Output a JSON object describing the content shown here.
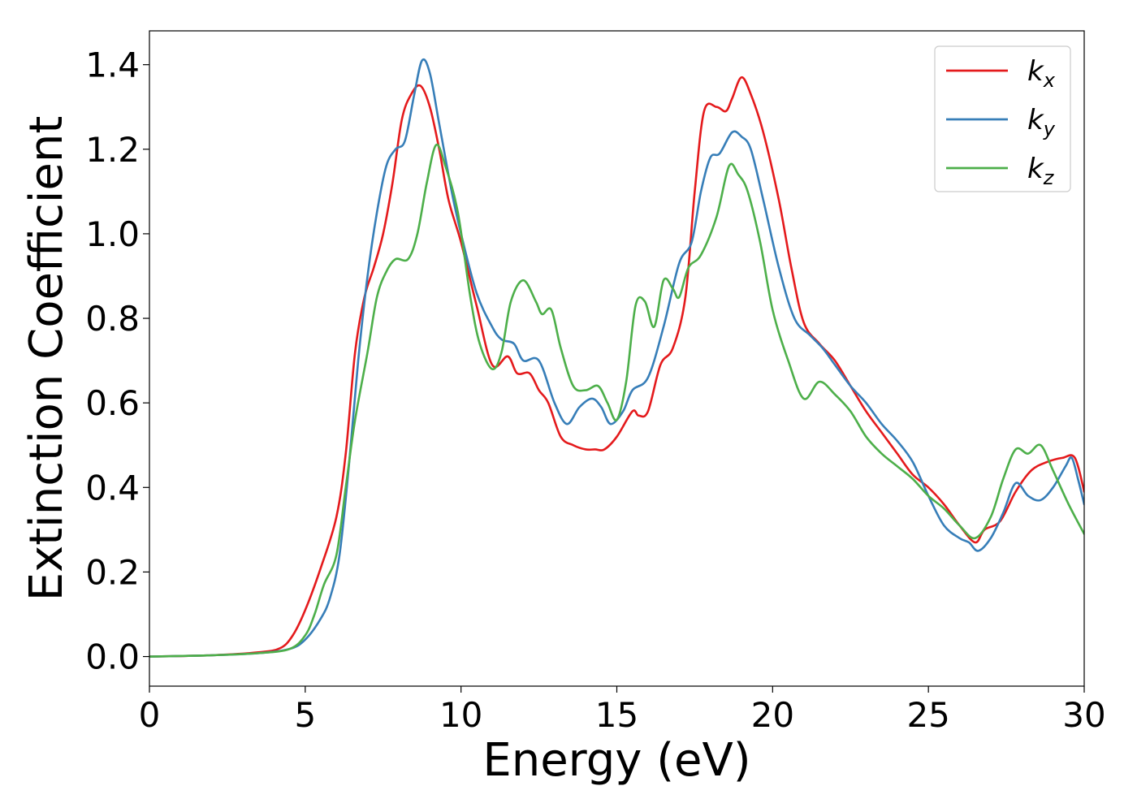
{
  "chart_data": {
    "type": "line",
    "title": "",
    "xlabel": "Energy (eV)",
    "ylabel": "Extinction Coefficient",
    "xlim": [
      0,
      30
    ],
    "ylim": [
      -0.07,
      1.48
    ],
    "xticks": [
      0,
      5,
      10,
      15,
      20,
      25,
      30
    ],
    "yticks": [
      0.0,
      0.2,
      0.4,
      0.6,
      0.8,
      1.0,
      1.2,
      1.4
    ],
    "xtick_labels": [
      "0",
      "5",
      "10",
      "15",
      "20",
      "25",
      "30"
    ],
    "ytick_labels": [
      "0.0",
      "0.2",
      "0.4",
      "0.6",
      "0.8",
      "1.0",
      "1.2",
      "1.4"
    ],
    "grid": false,
    "legend_position": "top-right",
    "series": [
      {
        "name": "k",
        "subscript": "x",
        "color": "#e41a1c",
        "points": [
          [
            0,
            0
          ],
          [
            2,
            0.003
          ],
          [
            3.5,
            0.01
          ],
          [
            4.2,
            0.02
          ],
          [
            4.6,
            0.05
          ],
          [
            5.0,
            0.11
          ],
          [
            5.5,
            0.21
          ],
          [
            6.0,
            0.33
          ],
          [
            6.3,
            0.48
          ],
          [
            6.6,
            0.72
          ],
          [
            6.9,
            0.85
          ],
          [
            7.2,
            0.92
          ],
          [
            7.5,
            1.0
          ],
          [
            7.8,
            1.12
          ],
          [
            8.1,
            1.27
          ],
          [
            8.4,
            1.33
          ],
          [
            8.7,
            1.35
          ],
          [
            9.0,
            1.3
          ],
          [
            9.3,
            1.2
          ],
          [
            9.6,
            1.08
          ],
          [
            10.0,
            0.98
          ],
          [
            10.5,
            0.83
          ],
          [
            11.0,
            0.69
          ],
          [
            11.5,
            0.71
          ],
          [
            11.8,
            0.67
          ],
          [
            12.2,
            0.67
          ],
          [
            12.5,
            0.63
          ],
          [
            12.8,
            0.6
          ],
          [
            13.2,
            0.52
          ],
          [
            13.6,
            0.5
          ],
          [
            14.0,
            0.49
          ],
          [
            14.3,
            0.49
          ],
          [
            14.6,
            0.49
          ],
          [
            15.0,
            0.52
          ],
          [
            15.5,
            0.58
          ],
          [
            15.7,
            0.57
          ],
          [
            16.0,
            0.58
          ],
          [
            16.4,
            0.69
          ],
          [
            16.8,
            0.73
          ],
          [
            17.2,
            0.85
          ],
          [
            17.5,
            1.1
          ],
          [
            17.8,
            1.29
          ],
          [
            18.2,
            1.3
          ],
          [
            18.5,
            1.29
          ],
          [
            18.7,
            1.32
          ],
          [
            19.0,
            1.37
          ],
          [
            19.3,
            1.33
          ],
          [
            19.7,
            1.24
          ],
          [
            20.2,
            1.08
          ],
          [
            20.6,
            0.92
          ],
          [
            21.0,
            0.79
          ],
          [
            21.5,
            0.74
          ],
          [
            22.0,
            0.7
          ],
          [
            22.5,
            0.64
          ],
          [
            23.0,
            0.58
          ],
          [
            23.5,
            0.53
          ],
          [
            24.0,
            0.48
          ],
          [
            24.5,
            0.43
          ],
          [
            25.0,
            0.4
          ],
          [
            25.5,
            0.36
          ],
          [
            26.0,
            0.31
          ],
          [
            26.5,
            0.27
          ],
          [
            26.8,
            0.3
          ],
          [
            27.3,
            0.32
          ],
          [
            27.8,
            0.39
          ],
          [
            28.3,
            0.44
          ],
          [
            28.8,
            0.46
          ],
          [
            29.3,
            0.47
          ],
          [
            29.7,
            0.47
          ],
          [
            30.0,
            0.39
          ]
        ]
      },
      {
        "name": "k",
        "subscript": "y",
        "color": "#377eb8",
        "points": [
          [
            0,
            0
          ],
          [
            2,
            0.003
          ],
          [
            3.5,
            0.008
          ],
          [
            4.5,
            0.018
          ],
          [
            5.0,
            0.04
          ],
          [
            5.5,
            0.09
          ],
          [
            5.8,
            0.14
          ],
          [
            6.1,
            0.24
          ],
          [
            6.4,
            0.45
          ],
          [
            6.7,
            0.7
          ],
          [
            7.0,
            0.9
          ],
          [
            7.3,
            1.05
          ],
          [
            7.6,
            1.16
          ],
          [
            7.9,
            1.2
          ],
          [
            8.2,
            1.22
          ],
          [
            8.5,
            1.33
          ],
          [
            8.75,
            1.41
          ],
          [
            9.0,
            1.38
          ],
          [
            9.3,
            1.26
          ],
          [
            9.7,
            1.1
          ],
          [
            10.0,
            1.0
          ],
          [
            10.5,
            0.86
          ],
          [
            11.0,
            0.78
          ],
          [
            11.3,
            0.75
          ],
          [
            11.7,
            0.74
          ],
          [
            12.0,
            0.7
          ],
          [
            12.5,
            0.7
          ],
          [
            13.0,
            0.6
          ],
          [
            13.4,
            0.55
          ],
          [
            13.8,
            0.59
          ],
          [
            14.2,
            0.61
          ],
          [
            14.5,
            0.59
          ],
          [
            14.8,
            0.55
          ],
          [
            15.2,
            0.58
          ],
          [
            15.5,
            0.63
          ],
          [
            16.0,
            0.66
          ],
          [
            16.5,
            0.78
          ],
          [
            17.0,
            0.93
          ],
          [
            17.4,
            0.98
          ],
          [
            17.7,
            1.1
          ],
          [
            18.0,
            1.18
          ],
          [
            18.3,
            1.19
          ],
          [
            18.7,
            1.24
          ],
          [
            19.0,
            1.23
          ],
          [
            19.3,
            1.2
          ],
          [
            19.7,
            1.08
          ],
          [
            20.2,
            0.92
          ],
          [
            20.7,
            0.8
          ],
          [
            21.2,
            0.76
          ],
          [
            21.6,
            0.73
          ],
          [
            22.0,
            0.69
          ],
          [
            22.5,
            0.64
          ],
          [
            23.0,
            0.6
          ],
          [
            23.5,
            0.55
          ],
          [
            24.0,
            0.51
          ],
          [
            24.5,
            0.46
          ],
          [
            25.0,
            0.38
          ],
          [
            25.5,
            0.31
          ],
          [
            26.0,
            0.28
          ],
          [
            26.3,
            0.27
          ],
          [
            26.6,
            0.25
          ],
          [
            27.0,
            0.28
          ],
          [
            27.4,
            0.34
          ],
          [
            27.8,
            0.41
          ],
          [
            28.2,
            0.38
          ],
          [
            28.6,
            0.37
          ],
          [
            29.0,
            0.4
          ],
          [
            29.4,
            0.45
          ],
          [
            29.6,
            0.47
          ],
          [
            29.8,
            0.42
          ],
          [
            30.0,
            0.36
          ]
        ]
      },
      {
        "name": "k",
        "subscript": "z",
        "color": "#4daf4a",
        "points": [
          [
            0,
            0
          ],
          [
            2,
            0.003
          ],
          [
            3.5,
            0.008
          ],
          [
            4.5,
            0.018
          ],
          [
            5.0,
            0.05
          ],
          [
            5.3,
            0.1
          ],
          [
            5.6,
            0.17
          ],
          [
            6.0,
            0.24
          ],
          [
            6.3,
            0.4
          ],
          [
            6.6,
            0.56
          ],
          [
            7.0,
            0.72
          ],
          [
            7.3,
            0.85
          ],
          [
            7.6,
            0.91
          ],
          [
            7.9,
            0.94
          ],
          [
            8.3,
            0.94
          ],
          [
            8.6,
            1.0
          ],
          [
            8.9,
            1.12
          ],
          [
            9.2,
            1.21
          ],
          [
            9.5,
            1.16
          ],
          [
            9.9,
            1.05
          ],
          [
            10.3,
            0.85
          ],
          [
            10.6,
            0.74
          ],
          [
            11.0,
            0.68
          ],
          [
            11.3,
            0.72
          ],
          [
            11.6,
            0.84
          ],
          [
            12.0,
            0.89
          ],
          [
            12.4,
            0.84
          ],
          [
            12.6,
            0.81
          ],
          [
            12.9,
            0.82
          ],
          [
            13.2,
            0.73
          ],
          [
            13.6,
            0.64
          ],
          [
            14.0,
            0.63
          ],
          [
            14.4,
            0.64
          ],
          [
            14.7,
            0.6
          ],
          [
            15.0,
            0.56
          ],
          [
            15.3,
            0.65
          ],
          [
            15.6,
            0.83
          ],
          [
            15.9,
            0.84
          ],
          [
            16.2,
            0.78
          ],
          [
            16.5,
            0.89
          ],
          [
            16.8,
            0.87
          ],
          [
            17.0,
            0.85
          ],
          [
            17.3,
            0.92
          ],
          [
            17.7,
            0.95
          ],
          [
            18.2,
            1.04
          ],
          [
            18.6,
            1.16
          ],
          [
            18.9,
            1.14
          ],
          [
            19.2,
            1.1
          ],
          [
            19.6,
            0.98
          ],
          [
            20.0,
            0.82
          ],
          [
            20.5,
            0.7
          ],
          [
            21.0,
            0.61
          ],
          [
            21.5,
            0.65
          ],
          [
            22.0,
            0.62
          ],
          [
            22.5,
            0.58
          ],
          [
            23.0,
            0.52
          ],
          [
            23.5,
            0.48
          ],
          [
            24.0,
            0.45
          ],
          [
            24.5,
            0.42
          ],
          [
            25.0,
            0.38
          ],
          [
            25.5,
            0.35
          ],
          [
            26.0,
            0.31
          ],
          [
            26.5,
            0.28
          ],
          [
            27.0,
            0.33
          ],
          [
            27.4,
            0.42
          ],
          [
            27.8,
            0.49
          ],
          [
            28.2,
            0.48
          ],
          [
            28.6,
            0.5
          ],
          [
            29.0,
            0.44
          ],
          [
            29.5,
            0.36
          ],
          [
            30.0,
            0.29
          ]
        ]
      }
    ]
  }
}
